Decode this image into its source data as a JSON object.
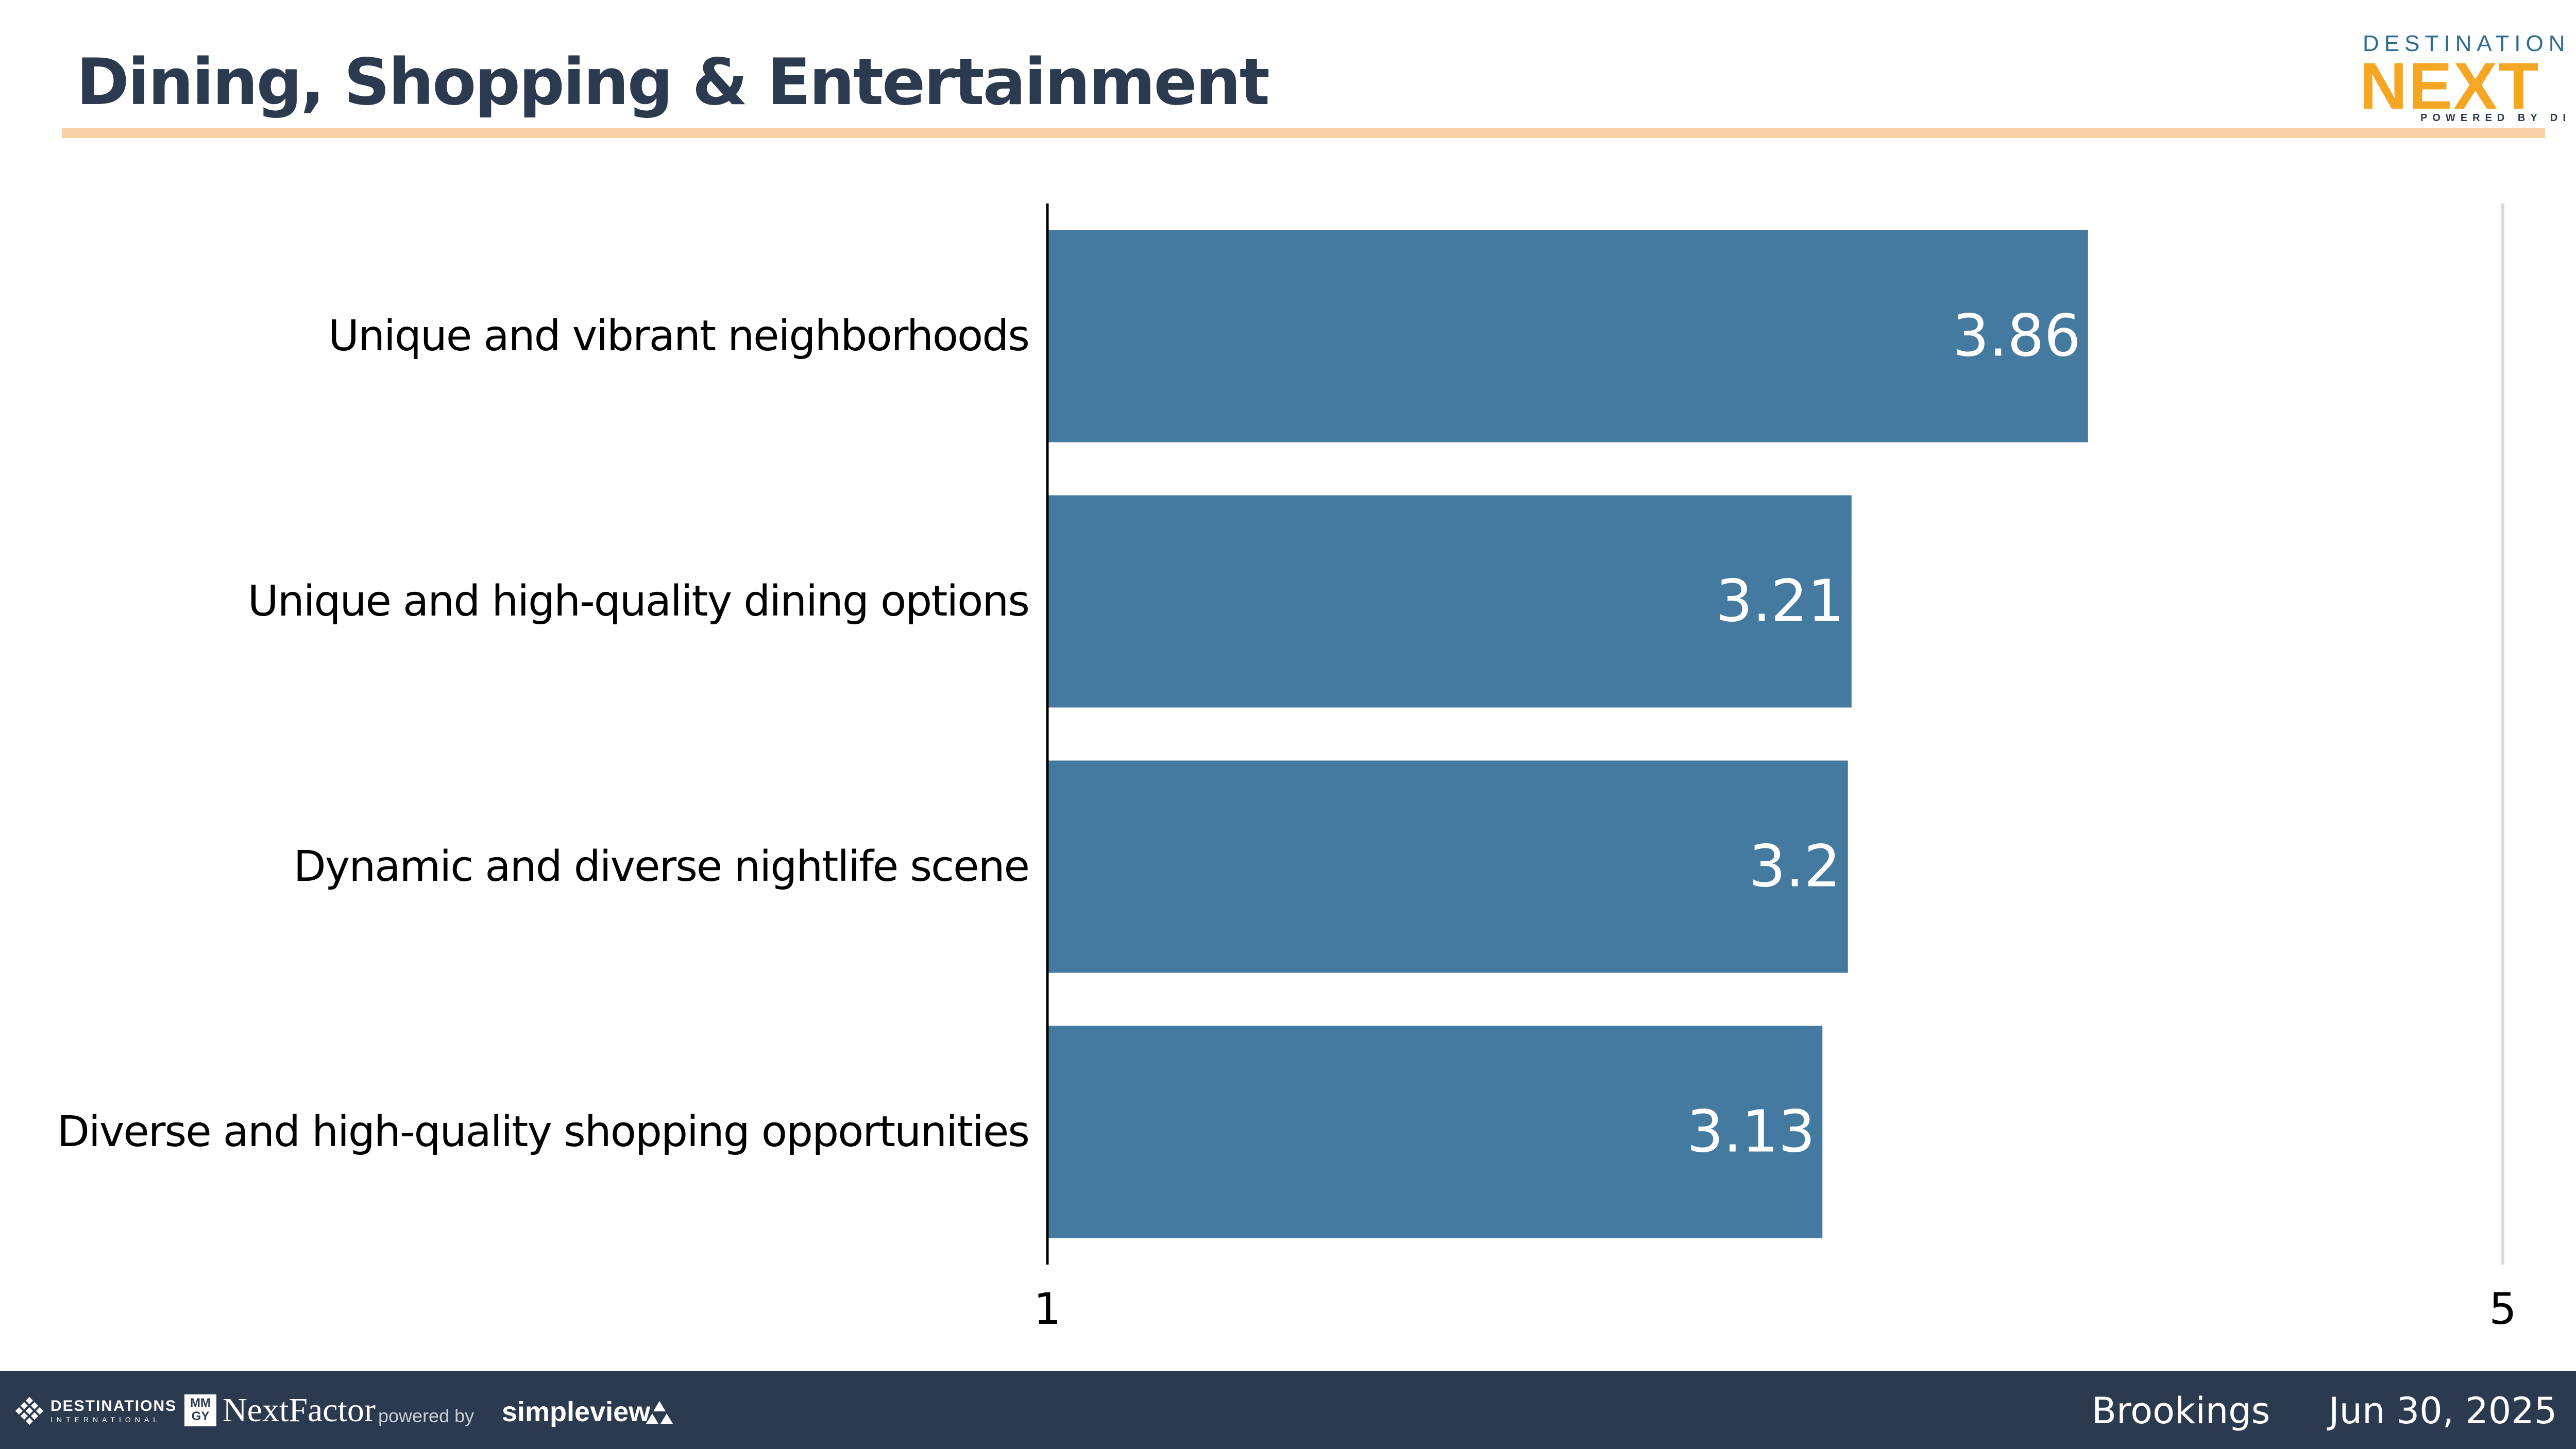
{
  "header": {
    "title": "Dining, Shopping & Entertainment",
    "logo": {
      "top_text": "DESTINATION",
      "main_text": "NEXT",
      "sub_text": "POWERED BY DI"
    }
  },
  "chart_data": {
    "type": "bar",
    "orientation": "horizontal",
    "categories": [
      "Unique and vibrant neighborhoods",
      "Unique and high-quality dining options",
      "Dynamic and diverse nightlife scene",
      "Diverse and high-quality shopping opportunities"
    ],
    "values": [
      3.86,
      3.21,
      3.2,
      3.13
    ],
    "value_labels": [
      "3.86",
      "3.21",
      "3.2",
      "3.13"
    ],
    "xlim": [
      1,
      5
    ],
    "x_ticks": [
      "1",
      "5"
    ],
    "bar_color": "#4479a0",
    "label_color": "#ffffff",
    "title": "",
    "xlabel": "",
    "ylabel": ""
  },
  "footer": {
    "di_text": "DESTINATIONS",
    "di_small": "INTERNATIONAL",
    "mmgy_text": "MM GY",
    "nextfactor_text": "NextFactor",
    "powered_by": "powered by",
    "simpleview": "simpleview",
    "location": "Brookings",
    "date": "Jun 30, 2025"
  },
  "colors": {
    "title": "#2c3a4f",
    "accent_rule": "#f8d1a6",
    "footer_bg": "#2c3a4f",
    "logo_orange": "#f5a623",
    "logo_blue": "#2f6b8f"
  }
}
